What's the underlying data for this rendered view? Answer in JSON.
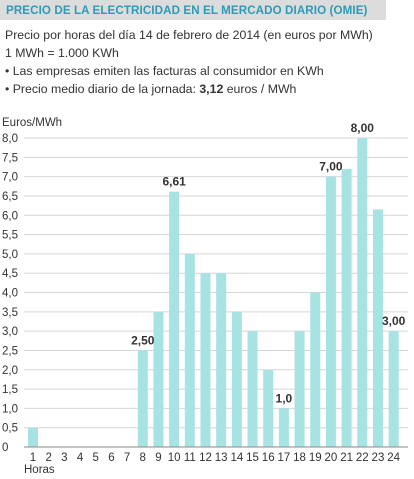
{
  "header": {
    "title": "PRECIO DE LA ELECTRICIDAD EN EL MERCADO DIARIO (OMIE)"
  },
  "notes": {
    "line1": "Precio por horas del día 14 de febrero de 2014 (en euros por MWh)",
    "line2": "1 MWh = 1.000 KWh",
    "line3": "• Las empresas emiten las facturas al consumidor en KWh",
    "line4_prefix": "• Precio medio diario de la jornada: ",
    "line4_value": "3,12",
    "line4_suffix": "  euros / MWh"
  },
  "colors": {
    "bar": "#a6e3e2",
    "title": "#2b9bb8",
    "grid": "#d6d6d6",
    "text": "#333333"
  },
  "chart_data": {
    "type": "bar",
    "ylabel": "Euros/MWh",
    "xlabel": "Horas",
    "ylim": [
      0,
      8.0
    ],
    "grid": true,
    "categories": [
      "1",
      "2",
      "3",
      "4",
      "5",
      "6",
      "7",
      "8",
      "9",
      "10",
      "11",
      "12",
      "13",
      "14",
      "15",
      "16",
      "17",
      "18",
      "19",
      "20",
      "21",
      "22",
      "23",
      "24"
    ],
    "values": [
      0.5,
      0,
      0,
      0,
      0,
      0,
      0,
      2.5,
      3.5,
      6.61,
      5.0,
      4.5,
      4.5,
      3.5,
      3.0,
      2.0,
      1.0,
      3.0,
      4.0,
      7.0,
      7.2,
      8.0,
      6.15,
      3.0
    ],
    "yticks": [
      "0",
      "0,5",
      "1,0",
      "1,5",
      "2,0",
      "2,5",
      "3,0",
      "3,5",
      "4,0",
      "4,5",
      "5,0",
      "5,5",
      "6,0",
      "6,5",
      "7,0",
      "7,5",
      "8,0"
    ],
    "annotations": [
      {
        "category": "8",
        "text": "2,50"
      },
      {
        "category": "10",
        "text": "6,61"
      },
      {
        "category": "17",
        "text": "1,0"
      },
      {
        "category": "20",
        "text": "7,00"
      },
      {
        "category": "22",
        "text": "8,00"
      },
      {
        "category": "24",
        "text": "3,00"
      }
    ]
  }
}
